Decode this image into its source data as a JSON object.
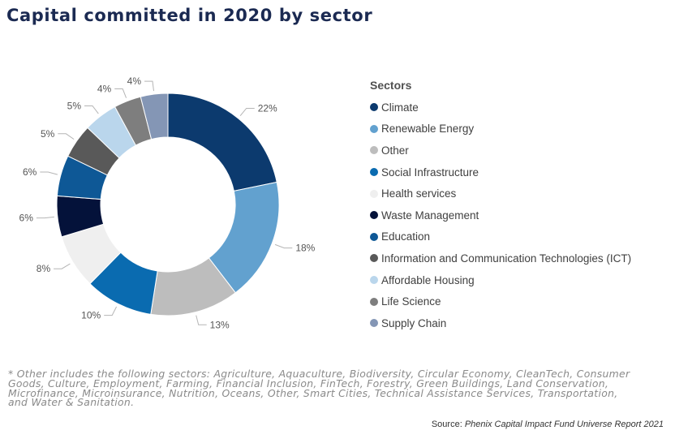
{
  "title": "Capital committed in 2020 by sector",
  "chart_data": {
    "type": "pie",
    "title": "Capital committed in 2020 by sector",
    "legend_title": "Sectors",
    "legend_position": "right",
    "categories": [
      "Climate",
      "Renewable Energy",
      "Other",
      "Social Infrastructure",
      "Health services",
      "Waste Management",
      "Education",
      "Information and Communication Technologies (ICT)",
      "Affordable Housing",
      "Life Science",
      "Supply Chain"
    ],
    "values": [
      22,
      18,
      13,
      10,
      8,
      6,
      6,
      5,
      5,
      4,
      4
    ],
    "labels": [
      "22%",
      "18%",
      "13%",
      "10%",
      "8%",
      "6%",
      "6%",
      "5%",
      "5%",
      "4%",
      "4%"
    ],
    "colors": [
      "#0c3a6e",
      "#62a1cf",
      "#bdbdbd",
      "#0a6bb0",
      "#efefef",
      "#04123a",
      "#0e5896",
      "#595959",
      "#bad6ec",
      "#7e7e7e",
      "#8496b5"
    ]
  },
  "footnote": "* Other includes the following sectors: Agriculture, Aquaculture, Biodiversity, Circular Economy, CleanTech, Consumer Goods, Culture, Employment, Farming, Financial Inclusion, FinTech, Forestry, Green Buildings, Land Conservation, Microfinance, Microinsurance, Nutrition, Oceans, Other, Smart Cities, Technical Assistance Services, Transportation, and Water & Sanitation.",
  "source": {
    "prefix": "Source: ",
    "text": "Phenix Capital Impact Fund Universe Report 2021"
  }
}
